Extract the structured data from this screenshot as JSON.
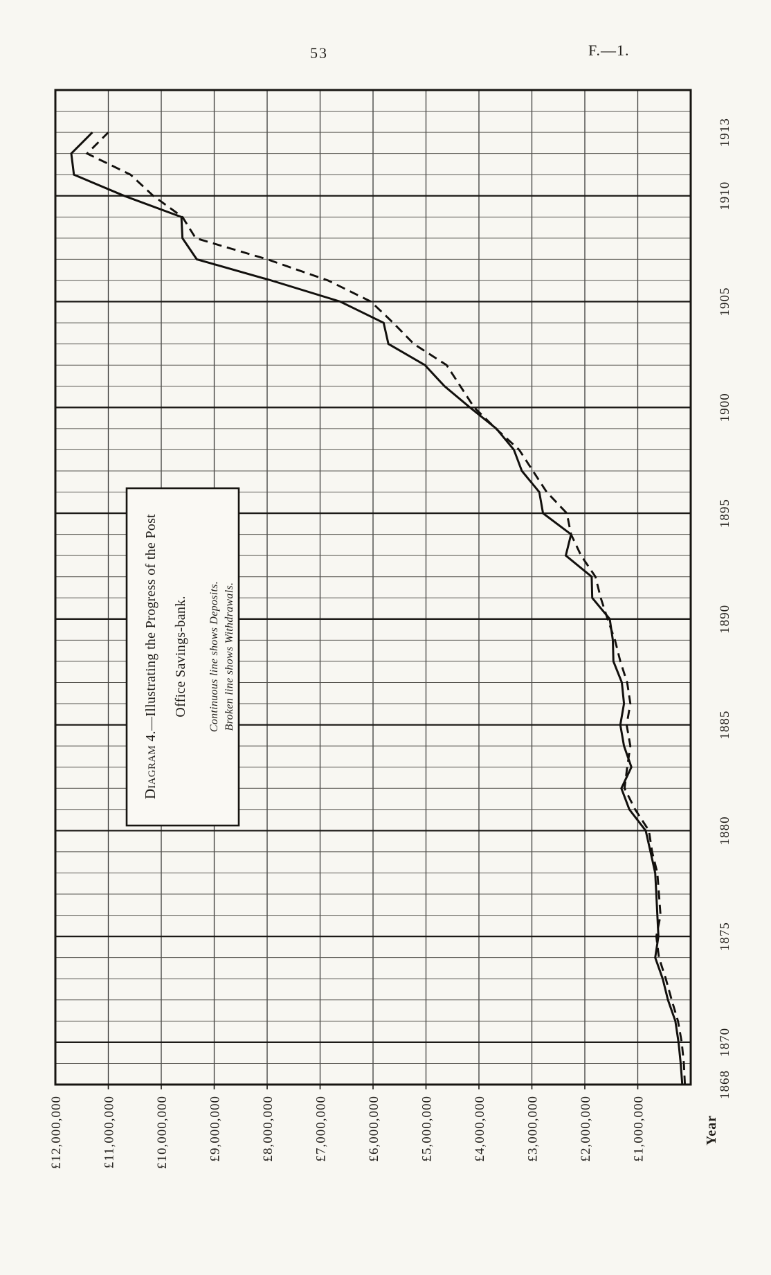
{
  "page": {
    "number": "53",
    "doc_ref": "F.—1."
  },
  "chart": {
    "title_prefix": "Diagram",
    "title_line1_rest": " 4.—Illustrating the Progress of the Post",
    "title_line2": "Office Savings-bank.",
    "legend_line1": "Continuous line shows Deposits.",
    "legend_line2": "Broken line shows Withdrawals.",
    "x_axis_title": "Year"
  },
  "chart_data": {
    "type": "line",
    "title": "Diagram 4.—Illustrating the Progress of the Post Office Savings-bank.",
    "note": "Chart is printed rotated 90° counter-clockwise on the page: years run from bottom (1868) to top (1913); £ values run from right (£0) to left (£12,000,000). Continuous line = Deposits, broken line = Withdrawals.",
    "unit": "£ million (values estimated from plot)",
    "x_label": "Year",
    "x": [
      1868,
      1869,
      1870,
      1871,
      1872,
      1873,
      1874,
      1875,
      1876,
      1877,
      1878,
      1879,
      1880,
      1881,
      1882,
      1883,
      1884,
      1885,
      1886,
      1887,
      1888,
      1889,
      1890,
      1891,
      1892,
      1893,
      1894,
      1895,
      1896,
      1897,
      1898,
      1899,
      1900,
      1901,
      1902,
      1903,
      1904,
      1905,
      1906,
      1907,
      1908,
      1909,
      1910,
      1911,
      1912,
      1913
    ],
    "series": [
      {
        "name": "Deposits",
        "style": "solid",
        "values": [
          0.16,
          0.19,
          0.23,
          0.29,
          0.43,
          0.53,
          0.67,
          0.61,
          0.63,
          0.65,
          0.67,
          0.76,
          0.85,
          1.16,
          1.31,
          1.12,
          1.26,
          1.33,
          1.26,
          1.3,
          1.46,
          1.47,
          1.53,
          1.86,
          1.87,
          2.36,
          2.26,
          2.79,
          2.86,
          3.19,
          3.34,
          3.67,
          4.17,
          4.65,
          5.02,
          5.71,
          5.8,
          6.62,
          7.92,
          9.33,
          9.6,
          9.62,
          10.7,
          11.65,
          11.7,
          11.3
        ]
      },
      {
        "name": "Withdrawals",
        "style": "dashed",
        "values": [
          0.11,
          0.13,
          0.17,
          0.24,
          0.36,
          0.47,
          0.6,
          0.65,
          0.57,
          0.6,
          0.63,
          0.73,
          0.79,
          1.05,
          1.25,
          1.2,
          1.14,
          1.21,
          1.14,
          1.2,
          1.33,
          1.43,
          1.57,
          1.7,
          1.8,
          2.07,
          2.26,
          2.34,
          2.72,
          2.98,
          3.24,
          3.68,
          4.09,
          4.35,
          4.61,
          5.23,
          5.62,
          6.04,
          6.85,
          8.0,
          9.35,
          9.6,
          10.15,
          10.58,
          11.4,
          11.0
        ]
      }
    ],
    "value_axis": {
      "min": 0,
      "max": 12,
      "gridline_step_millions": 1,
      "ticks": [
        {
          "value": 12,
          "label": "£12,000,000"
        },
        {
          "value": 11,
          "label": "£11,000,000"
        },
        {
          "value": 10,
          "label": "£10,000,000"
        },
        {
          "value": 9,
          "label": "£9,000,000"
        },
        {
          "value": 8,
          "label": "£8,000,000"
        },
        {
          "value": 7,
          "label": "£7,000,000"
        },
        {
          "value": 6,
          "label": "£6,000,000"
        },
        {
          "value": 5,
          "label": "£5,000,000"
        },
        {
          "value": 4,
          "label": "£4,000,000"
        },
        {
          "value": 3,
          "label": "£3,000,000"
        },
        {
          "value": 2,
          "label": "£2,000,000"
        },
        {
          "value": 1,
          "label": "£1,000,000"
        }
      ]
    },
    "year_axis": {
      "min": 1868,
      "max": 1913,
      "grid_top": 1915,
      "gridline_step_years": 1,
      "major_step_years": 5,
      "ticks": [
        {
          "value": 1868,
          "label": "1868"
        },
        {
          "value": 1870,
          "label": "1870"
        },
        {
          "value": 1875,
          "label": "1875"
        },
        {
          "value": 1880,
          "label": "1880"
        },
        {
          "value": 1885,
          "label": "1885"
        },
        {
          "value": 1890,
          "label": "1890"
        },
        {
          "value": 1895,
          "label": "1895"
        },
        {
          "value": 1900,
          "label": "1900"
        },
        {
          "value": 1905,
          "label": "1905"
        },
        {
          "value": 1910,
          "label": "1910"
        },
        {
          "value": 1913,
          "label": "1913"
        }
      ]
    },
    "legend_position": "boxed inset within plot",
    "grid": true
  }
}
